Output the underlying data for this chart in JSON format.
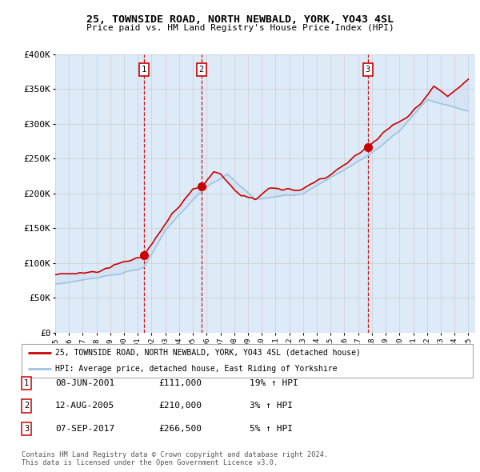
{
  "title": "25, TOWNSIDE ROAD, NORTH NEWBALD, YORK, YO43 4SL",
  "subtitle": "Price paid vs. HM Land Registry's House Price Index (HPI)",
  "ylim": [
    0,
    400000
  ],
  "yticks": [
    0,
    50000,
    100000,
    150000,
    200000,
    250000,
    300000,
    350000,
    400000
  ],
  "ytick_labels": [
    "£0",
    "£50K",
    "£100K",
    "£150K",
    "£200K",
    "£250K",
    "£300K",
    "£350K",
    "£400K"
  ],
  "hpi_color": "#9ec4e0",
  "price_color": "#cc0000",
  "vline_color": "#cc0000",
  "grid_color": "#cccccc",
  "bg_color": "#ffffff",
  "plot_bg_color": "#ddeaf7",
  "fill_color": "#c5dbf0",
  "legend_label_red": "25, TOWNSIDE ROAD, NORTH NEWBALD, YORK, YO43 4SL (detached house)",
  "legend_label_blue": "HPI: Average price, detached house, East Riding of Yorkshire",
  "sales": [
    {
      "label": "1",
      "date_str": "08-JUN-2001",
      "price": 111000,
      "pct": "19%",
      "x": 2001.44
    },
    {
      "label": "2",
      "date_str": "12-AUG-2005",
      "price": 210000,
      "pct": "3%",
      "x": 2005.62
    },
    {
      "label": "3",
      "date_str": "07-SEP-2017",
      "price": 266500,
      "pct": "5%",
      "x": 2017.69
    }
  ],
  "footer": "Contains HM Land Registry data © Crown copyright and database right 2024.\nThis data is licensed under the Open Government Licence v3.0.",
  "xtick_years": [
    1995,
    1996,
    1997,
    1998,
    1999,
    2000,
    2001,
    2002,
    2003,
    2004,
    2005,
    2006,
    2007,
    2008,
    2009,
    2010,
    2011,
    2012,
    2013,
    2014,
    2015,
    2016,
    2017,
    2018,
    2019,
    2020,
    2021,
    2022,
    2023,
    2024,
    2025
  ]
}
